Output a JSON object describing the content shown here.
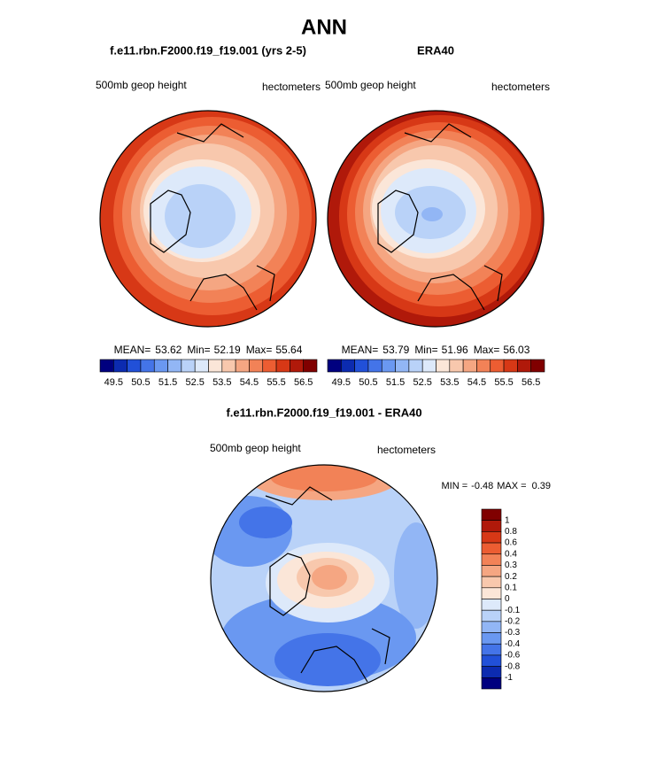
{
  "title": "ANN",
  "panels": [
    {
      "title": "f.e11.rbn.F2000.f19_f19.001 (yrs 2-5)",
      "variable": "500mb geop height",
      "units": "hectometers",
      "stats": [
        {
          "label": "MEAN=",
          "value": 53.62
        },
        {
          "label": "Min=",
          "value": 52.19
        },
        {
          "label": "Max=",
          "value": 55.64
        }
      ]
    },
    {
      "title": "ERA40",
      "variable": "500mb geop height",
      "units": "hectometers",
      "stats": [
        {
          "label": "MEAN=",
          "value": 53.79
        },
        {
          "label": "Min=",
          "value": 51.96
        },
        {
          "label": "Max=",
          "value": 56.03
        }
      ]
    }
  ],
  "colorbar": {
    "colors": [
      "#00007f",
      "#0c2bb0",
      "#2150d8",
      "#4474e8",
      "#6a98f1",
      "#92b6f5",
      "#b9d2f8",
      "#dde9fa",
      "#fbe6d8",
      "#f8c8ad",
      "#f5a682",
      "#f28257",
      "#ec5d32",
      "#d73816",
      "#b0190a",
      "#800000"
    ],
    "labels": [
      49.5,
      50.5,
      51.5,
      52.5,
      53.5,
      54.5,
      55.5,
      56.5
    ]
  },
  "difference": {
    "title": "f.e11.rbn.F2000.f19_f19.001 - ERA40",
    "variable": "500mb geop height",
    "units": "hectometers",
    "stats": [
      {
        "label": "MIN =",
        "value": -0.48
      },
      {
        "label": "MAX =",
        "value": 0.39
      }
    ],
    "colorbar": {
      "colors": [
        "#800000",
        "#b0190a",
        "#d73816",
        "#ec5d32",
        "#f28257",
        "#f5a682",
        "#f8c8ad",
        "#fbe6d8",
        "#dde9fa",
        "#b9d2f8",
        "#92b6f5",
        "#6a98f1",
        "#4474e8",
        "#2150d8",
        "#0c2bb0",
        "#00007f"
      ],
      "labels": [
        1,
        0.8,
        0.6,
        0.4,
        0.3,
        0.2,
        0.1,
        0,
        -0.1,
        -0.2,
        -0.3,
        -0.4,
        -0.6,
        -0.8,
        -1
      ]
    }
  }
}
